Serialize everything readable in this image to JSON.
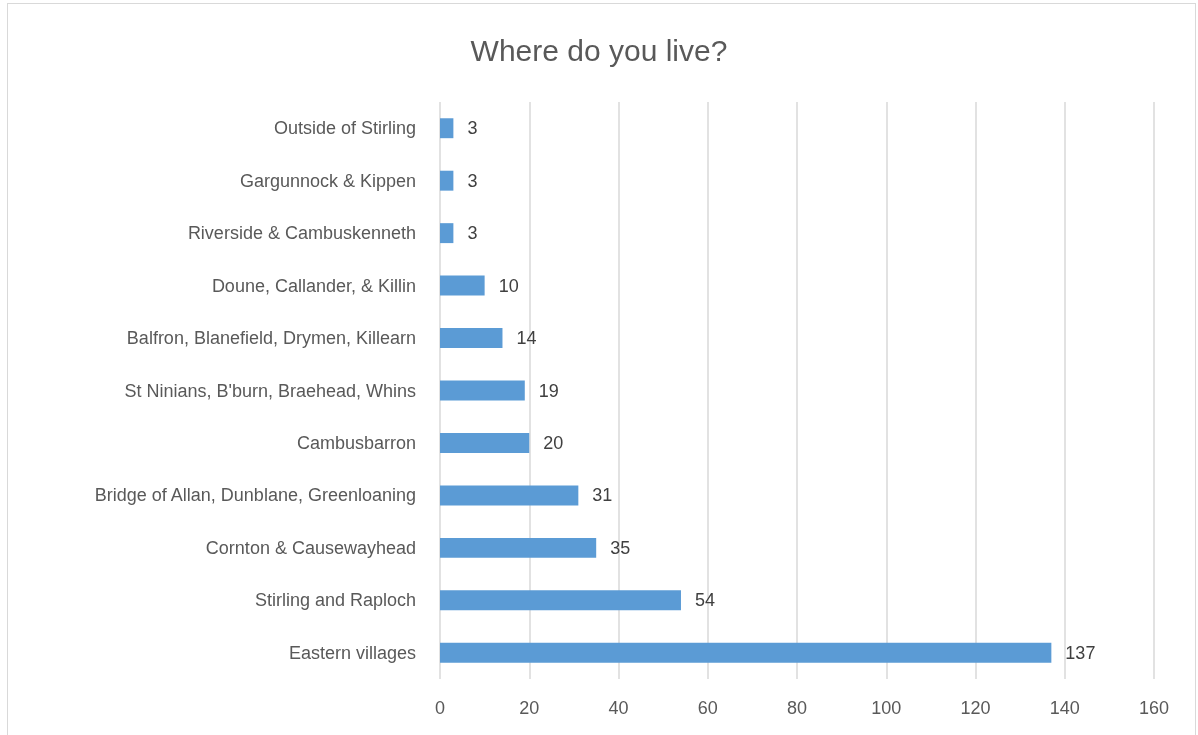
{
  "chart_data": {
    "type": "bar",
    "orientation": "horizontal",
    "title": "Where do you live?",
    "categories": [
      "Outside of Stirling",
      "Gargunnock & Kippen",
      "Riverside & Cambuskenneth",
      "Doune, Callander, & Killin",
      "Balfron, Blanefield, Drymen, Killearn",
      "St Ninians, B'burn, Braehead, Whins",
      "Cambusbarron",
      "Bridge of Allan, Dunblane, Greenloaning",
      "Cornton & Causewayhead",
      "Stirling and Raploch",
      "Eastern villages"
    ],
    "values": [
      3,
      3,
      3,
      10,
      14,
      19,
      20,
      31,
      35,
      54,
      137
    ],
    "color": "#5b9bd5",
    "xlim": [
      0,
      160
    ],
    "xticks": [
      0,
      20,
      40,
      60,
      80,
      100,
      120,
      140,
      160
    ],
    "grid": "x",
    "data_labels": true
  }
}
